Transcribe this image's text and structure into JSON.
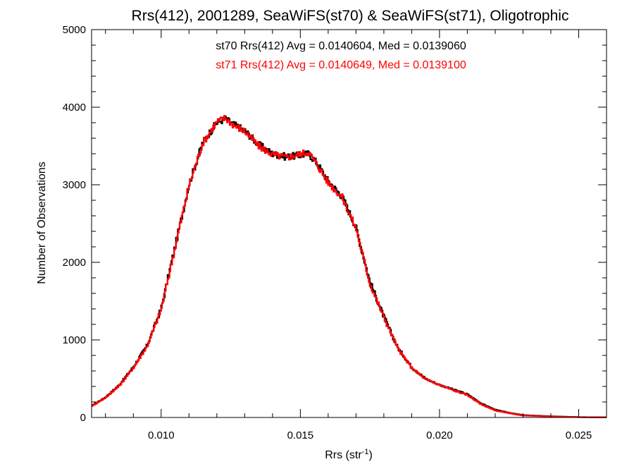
{
  "chart_data": {
    "type": "line",
    "title": "Rrs(412), 2001289, SeaWiFS(st70) & SeaWiFS(st71), Oligotrophic",
    "xlabel": {
      "base": "Rrs (str",
      "sup": "-1",
      "close": ")"
    },
    "ylabel": "Number of Observations",
    "xlim": [
      0.0075,
      0.026
    ],
    "ylim": [
      0,
      5000
    ],
    "xticks": [
      {
        "value": 0.01,
        "label": "0.010"
      },
      {
        "value": 0.015,
        "label": "0.015"
      },
      {
        "value": 0.02,
        "label": "0.020"
      },
      {
        "value": 0.025,
        "label": "0.025"
      }
    ],
    "yticks": [
      {
        "value": 0,
        "label": "0"
      },
      {
        "value": 1000,
        "label": "1000"
      },
      {
        "value": 2000,
        "label": "2000"
      },
      {
        "value": 3000,
        "label": "3000"
      },
      {
        "value": 4000,
        "label": "4000"
      },
      {
        "value": 5000,
        "label": "5000"
      }
    ],
    "grid": false,
    "step": true,
    "annotations": [
      {
        "text": "st70 Rrs(412) Avg = 0.0140604, Med = 0.0139060",
        "color": "#000000"
      },
      {
        "text": "st71 Rrs(412) Avg = 0.0140649, Med = 0.0139100",
        "color": "#ff0000"
      }
    ],
    "x": [
      0.0075,
      0.008,
      0.0085,
      0.009,
      0.0095,
      0.01,
      0.0105,
      0.011,
      0.0115,
      0.012,
      0.0123,
      0.0126,
      0.013,
      0.0135,
      0.014,
      0.0145,
      0.015,
      0.0153,
      0.0156,
      0.016,
      0.0165,
      0.017,
      0.0175,
      0.018,
      0.0185,
      0.019,
      0.0195,
      0.02,
      0.0205,
      0.021,
      0.0215,
      0.022,
      0.0225,
      0.023,
      0.024,
      0.025,
      0.026
    ],
    "series": [
      {
        "color": "#000000",
        "values": [
          150,
          260,
          420,
          650,
          930,
          1400,
          2200,
          3000,
          3550,
          3800,
          3850,
          3780,
          3700,
          3520,
          3400,
          3360,
          3380,
          3400,
          3280,
          3050,
          2850,
          2450,
          1750,
          1300,
          900,
          650,
          500,
          420,
          360,
          300,
          180,
          100,
          60,
          30,
          15,
          5,
          2
        ]
      },
      {
        "color": "#ff0000",
        "values": [
          145,
          255,
          410,
          640,
          920,
          1390,
          2190,
          2990,
          3540,
          3810,
          3860,
          3770,
          3690,
          3500,
          3390,
          3350,
          3400,
          3420,
          3260,
          3030,
          2840,
          2440,
          1730,
          1290,
          890,
          640,
          490,
          420,
          350,
          290,
          170,
          90,
          55,
          25,
          12,
          4,
          2
        ]
      }
    ]
  }
}
